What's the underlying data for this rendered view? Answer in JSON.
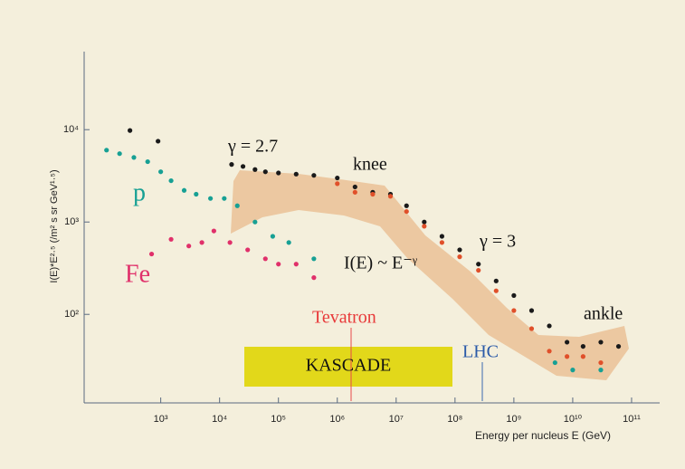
{
  "chart_data": {
    "type": "scatter",
    "x_label": "Energy per nucleus E (GeV)",
    "y_label": "I(E)*E²·⁵ (/m² s sr GeV¹·⁵)",
    "log_x": true,
    "log_y": true,
    "xlim": [
      50,
      300000000000
    ],
    "ylim": [
      11,
      70000
    ],
    "xticks": [
      {
        "value": 1000,
        "label": "10³"
      },
      {
        "value": 10000,
        "label": "10⁴"
      },
      {
        "value": 100000,
        "label": "10⁵"
      },
      {
        "value": 1000000,
        "label": "10⁶"
      },
      {
        "value": 10000000,
        "label": "10⁷"
      },
      {
        "value": 100000000,
        "label": "10⁸"
      },
      {
        "value": 1000000000,
        "label": "10⁹"
      },
      {
        "value": 10000000000,
        "label": "10¹⁰"
      },
      {
        "value": 100000000000,
        "label": "10¹¹"
      }
    ],
    "yticks": [
      {
        "value": 100,
        "label": "10²"
      },
      {
        "value": 1000,
        "label": "10³"
      },
      {
        "value": 10000,
        "label": "10⁴"
      }
    ],
    "annotations": [
      "γ = 2.7",
      "knee",
      "γ = 3",
      "I(E) ~ E⁻ᵞ",
      "ankle",
      "Tevatron",
      "LHC",
      "KASCADE"
    ],
    "series": [
      {
        "color": "#1a1a1a",
        "x": [
          300,
          900,
          16000,
          25000,
          40000,
          60000,
          100000,
          200000,
          400000,
          1000000,
          2000000,
          4000000,
          8000000,
          15000000,
          30000000,
          60000000,
          120000000,
          250000000,
          500000000,
          1000000000,
          2000000000,
          4000000000,
          8000000000,
          15000000000,
          30000000000,
          60000000000
        ],
        "values": [
          9800,
          7500,
          4200,
          4000,
          3700,
          3500,
          3400,
          3300,
          3200,
          3000,
          2400,
          2100,
          2000,
          1500,
          1000,
          700,
          500,
          350,
          230,
          160,
          110,
          75,
          50,
          45,
          50,
          45
        ]
      },
      {
        "name": "p",
        "color": "#17a094",
        "x": [
          120,
          200,
          350,
          600,
          1000,
          1500,
          2500,
          4000,
          7000,
          12000,
          20000,
          40000,
          80000,
          150000,
          400000,
          5000000000,
          10000000000,
          30000000000
        ],
        "values": [
          6000,
          5500,
          5000,
          4500,
          3500,
          2800,
          2200,
          2000,
          1800,
          1800,
          1500,
          1000,
          700,
          600,
          400,
          30,
          25,
          25
        ]
      },
      {
        "name": "Fe",
        "color": "#e0306a",
        "x": [
          700,
          1500,
          3000,
          5000,
          8000,
          15000,
          30000,
          60000,
          100000,
          200000,
          400000
        ],
        "values": [
          450,
          650,
          550,
          600,
          800,
          600,
          500,
          400,
          350,
          350,
          250
        ]
      },
      {
        "color": "#e0502a",
        "x": [
          1000000,
          2000000,
          4000000,
          8000000,
          15000000,
          30000000,
          60000000,
          120000000,
          250000000,
          500000000,
          1000000000,
          2000000000,
          4000000000,
          8000000000,
          15000000000,
          30000000000
        ],
        "values": [
          2600,
          2100,
          2000,
          1900,
          1300,
          900,
          600,
          420,
          300,
          180,
          110,
          70,
          40,
          35,
          35,
          30
        ]
      }
    ]
  }
}
